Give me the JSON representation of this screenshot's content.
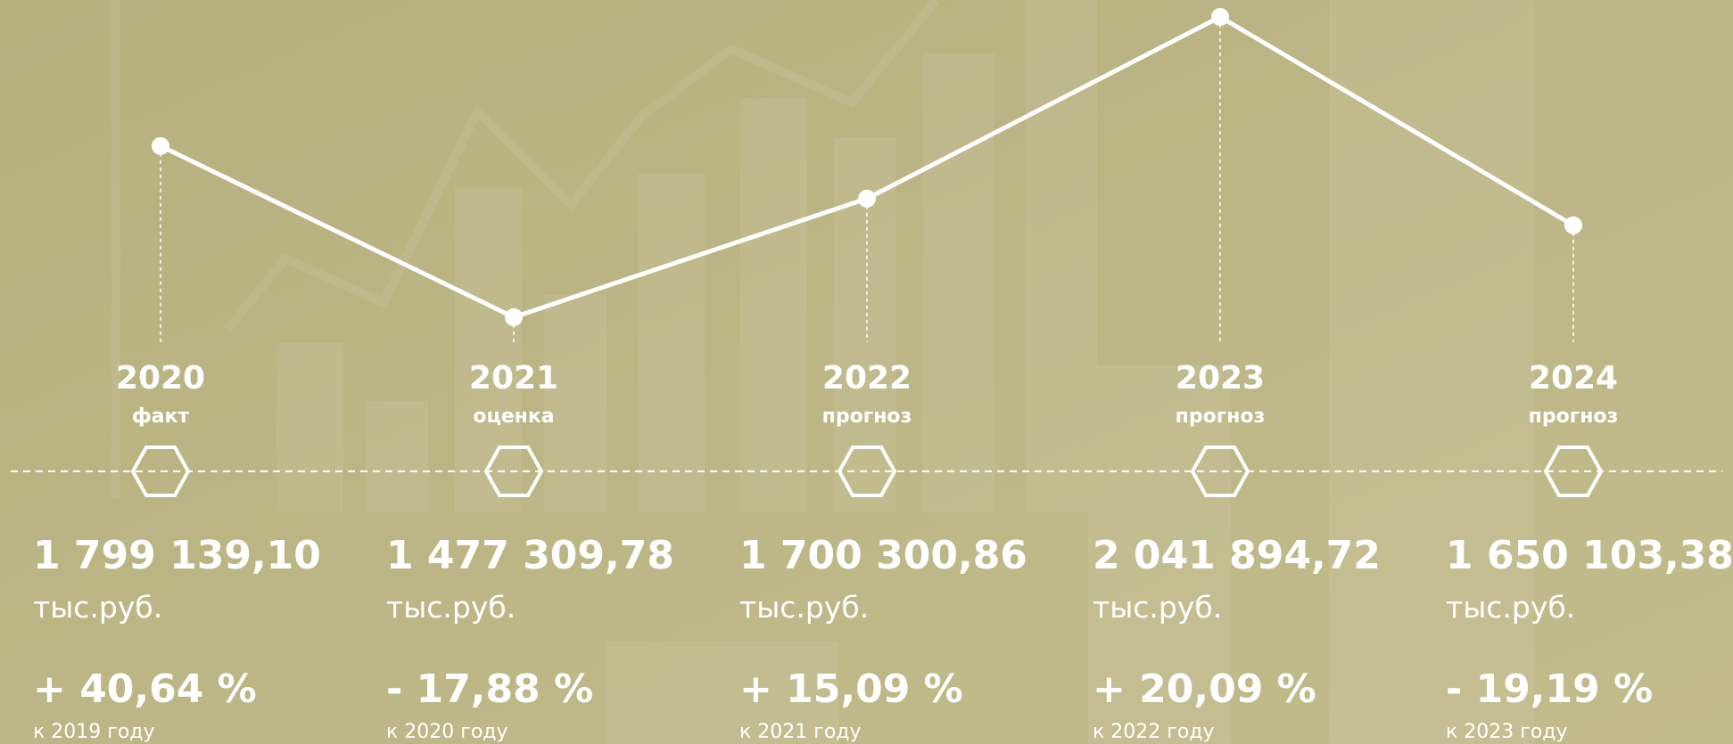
{
  "chart_data": {
    "type": "line",
    "categories": [
      "2020",
      "2021",
      "2022",
      "2023",
      "2024"
    ],
    "subtitles": [
      "факт",
      "оценка",
      "прогноз",
      "прогноз",
      "прогноз"
    ],
    "values": [
      1799139.1,
      1477309.78,
      1700300.86,
      2041894.72,
      1650103.38
    ],
    "value_labels": [
      "1 799 139,10",
      "1 477 309,78",
      "1 700 300,86",
      "2 041 894,72",
      "1 650 103,38"
    ],
    "unit": "тыс.руб.",
    "changes": [
      40.64,
      -17.88,
      15.09,
      20.09,
      -19.19
    ],
    "change_labels": [
      "+ 40,64 %",
      "- 17,88 %",
      "+ 15,09 %",
      "+ 20,09 %",
      "- 19,19 %"
    ],
    "change_bases": [
      "к 2019 году",
      "к 2020 году",
      "к 2021 году",
      "к 2022 году",
      "к 2023 году"
    ],
    "color": "#ffffff"
  }
}
